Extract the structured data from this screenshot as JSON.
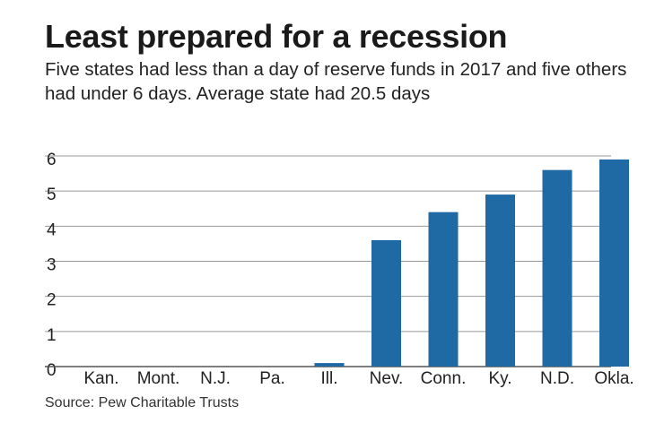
{
  "header": {
    "title": "Least prepared for a recession",
    "subtitle": "Five states had less than a day of reserve funds in 2017 and five others had under 6 days. Average state had 20.5 days"
  },
  "footer": {
    "source": "Source: Pew Charitable Trusts"
  },
  "colors": {
    "bar": "#1f6aa5",
    "grid": "#9a9a9a",
    "axis": "#555555"
  },
  "chart_data": {
    "type": "bar",
    "title": "Least prepared for a recession",
    "xlabel": "",
    "ylabel": "",
    "ylim": [
      0,
      6
    ],
    "yticks": [
      0,
      1,
      2,
      3,
      4,
      5,
      6
    ],
    "grid": true,
    "categories": [
      "Kan.",
      "Mont.",
      "N.J.",
      "Pa.",
      "Ill.",
      "Nev.",
      "Conn.",
      "Ky.",
      "N.D.",
      "Okla."
    ],
    "values": [
      0,
      0,
      0,
      0,
      0.1,
      3.6,
      4.4,
      4.9,
      5.6,
      5.9
    ]
  }
}
